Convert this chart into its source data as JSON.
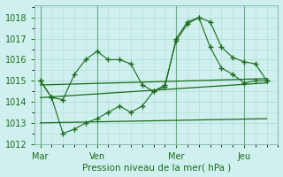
{
  "xlabel": "Pression niveau de la mer( hPa )",
  "background_color": "#cff0ee",
  "grid_color": "#b0dcd8",
  "line_color": "#1a6b1a",
  "tick_label_color": "#1a6b1a",
  "ylim": [
    1012,
    1018.6
  ],
  "yticks": [
    1012,
    1013,
    1014,
    1015,
    1016,
    1017,
    1018
  ],
  "day_labels": [
    "Mar",
    "Ven",
    "Mer",
    "Jeu"
  ],
  "day_positions": [
    0,
    5,
    12,
    18
  ],
  "xlim": [
    -0.5,
    21
  ],
  "series1_x": [
    0,
    1,
    2,
    3,
    4,
    5,
    6,
    7,
    8,
    9,
    10,
    11,
    12,
    13,
    14,
    15,
    16,
    17,
    18,
    19,
    20
  ],
  "series1_y": [
    1015.0,
    1014.2,
    1014.1,
    1015.3,
    1016.0,
    1016.4,
    1016.0,
    1016.0,
    1015.8,
    1014.8,
    1014.5,
    1014.7,
    1017.0,
    1017.8,
    1018.0,
    1017.8,
    1016.6,
    1016.1,
    1015.9,
    1015.8,
    1015.0
  ],
  "series2_x": [
    0,
    1,
    2,
    3,
    4,
    5,
    6,
    7,
    8,
    9,
    10,
    11,
    12,
    13,
    14,
    15,
    16,
    17,
    18,
    19,
    20
  ],
  "series2_y": [
    1015.0,
    1014.2,
    1012.5,
    1012.7,
    1013.0,
    1013.2,
    1013.5,
    1013.8,
    1013.5,
    1013.8,
    1014.5,
    1014.8,
    1016.9,
    1017.7,
    1018.0,
    1016.6,
    1015.6,
    1015.3,
    1014.9,
    1015.0,
    1015.0
  ],
  "series3_x": [
    0,
    20
  ],
  "series3_y": [
    1014.8,
    1015.1
  ],
  "series4_x": [
    0,
    20
  ],
  "series4_y": [
    1014.2,
    1014.9
  ],
  "series5_x": [
    0,
    20
  ],
  "series5_y": [
    1013.0,
    1013.2
  ],
  "vline_positions": [
    0,
    5,
    12,
    18
  ]
}
